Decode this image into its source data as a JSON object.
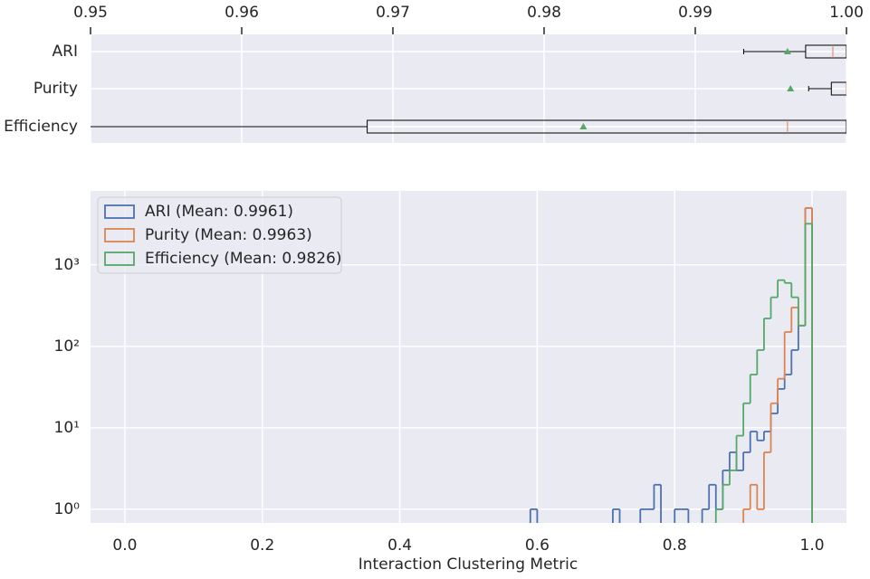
{
  "chart_data": [
    {
      "type": "box",
      "categories": [
        "ARI",
        "Purity",
        "Efficiency"
      ],
      "stats": [
        {
          "whislo": 0.9932,
          "q1": 0.9973,
          "med": 0.9991,
          "q3": 1,
          "whishi": 1,
          "mean": 0.9961
        },
        {
          "whislo": 0.9975,
          "q1": 0.999,
          "med": 1,
          "q3": 1,
          "whishi": 1,
          "mean": 0.9963
        },
        {
          "whislo": 0.94,
          "q1": 0.9683,
          "med": 0.9961,
          "q3": 1,
          "whishi": 1,
          "mean": 0.9826
        }
      ],
      "box_color": "#000000",
      "median_color": "#dd8452",
      "mean_color": "#55a868",
      "xlim": [
        0.95,
        1
      ],
      "xticks": [
        0.95,
        0.96,
        0.97,
        0.98,
        0.99,
        {
          "value": 1,
          "label": "1.00"
        }
      ],
      "grid": true
    },
    {
      "type": "histogram",
      "xlabel": "Interaction Clustering Metric",
      "bins": [
        0.59,
        0.6,
        0.61,
        0.62,
        0.63,
        0.64,
        0.65,
        0.66,
        0.67,
        0.68,
        0.69,
        0.7,
        0.71,
        0.72,
        0.73,
        0.74,
        0.75,
        0.76,
        0.77,
        0.78,
        0.79,
        0.8,
        0.81,
        0.82,
        0.83,
        0.84,
        0.85,
        0.86,
        0.87,
        0.88,
        0.89,
        0.9,
        0.91,
        0.92,
        0.93,
        0.94,
        0.95,
        0.96,
        0.97,
        0.98,
        0.99,
        1
      ],
      "series": [
        {
          "name": "ARI (Mean: 0.9961)",
          "color": "#4c72b0",
          "values": [
            1,
            0,
            0,
            0,
            0,
            0,
            0,
            0,
            0,
            0,
            0,
            0,
            1,
            0,
            0,
            0,
            1,
            1,
            2,
            0,
            0,
            1,
            1,
            0,
            0,
            1,
            2,
            1,
            3,
            5,
            3,
            5,
            9,
            7,
            9,
            15,
            30,
            45,
            90,
            180,
            5000
          ]
        },
        {
          "name": "Purity (Mean: 0.9963)",
          "color": "#dd8452",
          "values": [
            0,
            0,
            0,
            0,
            0,
            0,
            0,
            0,
            0,
            0,
            0,
            0,
            0,
            0,
            0,
            0,
            0,
            0,
            0,
            0,
            0,
            0,
            0,
            0,
            0,
            0,
            0,
            0,
            0,
            0,
            0,
            1,
            2,
            1,
            5,
            20,
            40,
            150,
            300,
            180,
            5000
          ]
        },
        {
          "name": "Efficiency (Mean: 0.9826)",
          "color": "#55a868",
          "values": [
            0,
            0,
            0,
            0,
            0,
            0,
            0,
            0,
            0,
            0,
            0,
            0,
            0,
            0,
            0,
            0,
            0,
            0,
            0,
            0,
            0,
            0,
            0,
            0,
            0,
            0,
            0,
            1,
            2,
            3,
            8,
            20,
            45,
            90,
            220,
            400,
            650,
            600,
            400,
            180,
            3200
          ]
        }
      ],
      "xlim": [
        -0.05,
        1.05
      ],
      "xticks": [
        {
          "value": 0,
          "label": "0.0"
        },
        0.2,
        0.4,
        0.6,
        0.8,
        {
          "value": 1,
          "label": "1.0"
        }
      ],
      "yscale": "log",
      "ylim": [
        0.68,
        8100
      ],
      "yticks": [
        {
          "value": 1,
          "label": "10⁰"
        },
        {
          "value": 10,
          "label": "10¹"
        },
        {
          "value": 100,
          "label": "10²"
        },
        {
          "value": 1000,
          "label": "10³"
        }
      ],
      "grid": true,
      "legend": "upper left"
    }
  ]
}
